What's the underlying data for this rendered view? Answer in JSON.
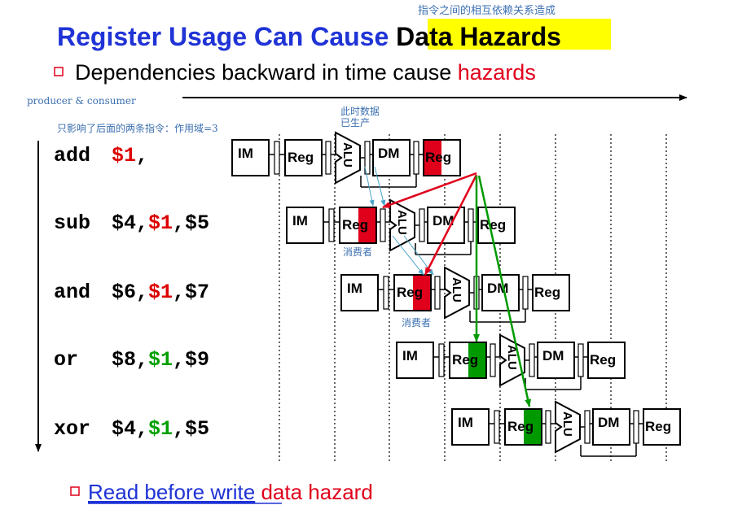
{
  "title": {
    "main": "Register Usage Can Cause ",
    "highlight": "Data Hazards",
    "top_note": "指令之间的相互依赖关系造成"
  },
  "bullets": {
    "first_text": "Dependencies backward in time cause ",
    "first_red": "hazards",
    "second_link": "Read before write",
    "second_text": " data hazard"
  },
  "notes": {
    "producer_consumer": "producer & consumer",
    "scope": "只影响了后面的两条指令：作用域=3",
    "data_ready_line1": "此时数据",
    "data_ready_line2": "已生产",
    "consumer_1": "消费者",
    "consumer_2": "消费者"
  },
  "stage_labels": {
    "im": "IM",
    "reg": "Reg",
    "alu": "ALU",
    "dm": "DM"
  },
  "instructions": [
    {
      "op": "add",
      "parts": [
        {
          "t": "$1",
          "c": "#dd0000"
        },
        {
          "t": ",",
          "c": "#000000"
        }
      ]
    },
    {
      "op": "sub",
      "parts": [
        {
          "t": "$4,",
          "c": "#000000"
        },
        {
          "t": "$1",
          "c": "#dd0000"
        },
        {
          "t": ",$5",
          "c": "#000000"
        }
      ]
    },
    {
      "op": "and",
      "parts": [
        {
          "t": "$6,",
          "c": "#000000"
        },
        {
          "t": "$1",
          "c": "#dd0000"
        },
        {
          "t": ",$7",
          "c": "#000000"
        }
      ]
    },
    {
      "op": "or",
      "parts": [
        {
          "t": "$8,",
          "c": "#000000"
        },
        {
          "t": "$1",
          "c": "#00a000"
        },
        {
          "t": ",$9",
          "c": "#000000"
        }
      ]
    },
    {
      "op": "xor",
      "parts": [
        {
          "t": "$4,",
          "c": "#000000"
        },
        {
          "t": "$1",
          "c": "#00a000"
        },
        {
          "t": ",$5",
          "c": "#000000"
        }
      ]
    }
  ],
  "colors": {
    "title_blue": "#1f33d6",
    "highlight_yellow": "#ffff00",
    "hazard_red": "#e0001b",
    "forward_green": "#009a00",
    "note_blue": "#3b6fb0",
    "arrow_cyan": "#4aa3c8"
  }
}
